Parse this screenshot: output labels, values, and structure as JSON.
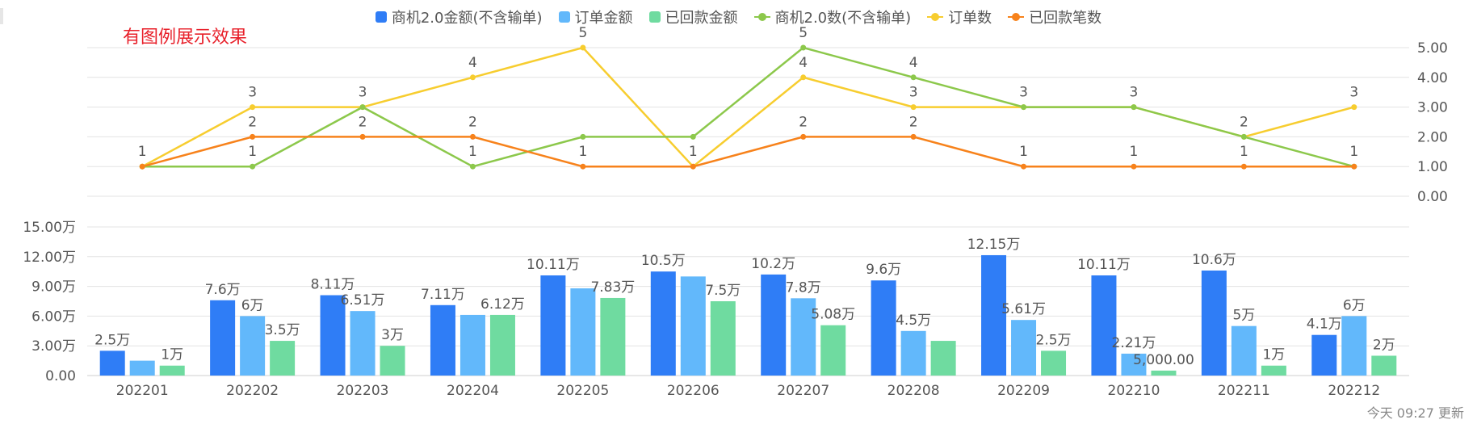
{
  "legend": [
    {
      "label": "商机2.0金额(不含输单)",
      "kind": "bar",
      "color": "#2f7df6"
    },
    {
      "label": "订单金额",
      "kind": "bar",
      "color": "#62b8fb"
    },
    {
      "label": "已回款金额",
      "kind": "bar",
      "color": "#6fdba0"
    },
    {
      "label": "商机2.0数(不含输单)",
      "kind": "line",
      "color": "#8cc84b"
    },
    {
      "label": "订单数",
      "kind": "line",
      "color": "#f7cd2f"
    },
    {
      "label": "已回款笔数",
      "kind": "line",
      "color": "#f7821b"
    }
  ],
  "annotation": "有图例展示效果",
  "footer": "今天 09:27 更新",
  "chart_data": [
    {
      "type": "line",
      "categories": [
        "202201",
        "202202",
        "202203",
        "202204",
        "202205",
        "202206",
        "202207",
        "202208",
        "202209",
        "202210",
        "202211",
        "202212"
      ],
      "yaxis_side": "right",
      "ylim": [
        0,
        5
      ],
      "yticks": [
        "0.00",
        "1.00",
        "2.00",
        "3.00",
        "4.00",
        "5.00"
      ],
      "grid": true,
      "series": [
        {
          "name": "订单数",
          "color": "#f7cd2f",
          "values": [
            1,
            3,
            3,
            4,
            5,
            1,
            4,
            3,
            3,
            3,
            2,
            3
          ],
          "labels": [
            "1",
            "3",
            "3",
            "4",
            "5",
            "",
            "4",
            "3",
            "3",
            "3",
            "",
            "3"
          ]
        },
        {
          "name": "商机2.0数(不含输单)",
          "color": "#8cc84b",
          "values": [
            1,
            1,
            3,
            1,
            2,
            2,
            5,
            4,
            3,
            3,
            2,
            1
          ],
          "labels": [
            "",
            "1",
            "",
            "1",
            "",
            "",
            "5",
            "4",
            "",
            "",
            "2",
            ""
          ]
        },
        {
          "name": "已回款笔数",
          "color": "#f7821b",
          "values": [
            1,
            2,
            2,
            2,
            1,
            1,
            2,
            2,
            1,
            1,
            1,
            1
          ],
          "labels": [
            "",
            "2",
            "2",
            "2",
            "1",
            "1",
            "2",
            "2",
            "1",
            "1",
            "1",
            "1"
          ]
        }
      ]
    },
    {
      "type": "bar",
      "categories": [
        "202201",
        "202202",
        "202203",
        "202204",
        "202205",
        "202206",
        "202207",
        "202208",
        "202209",
        "202210",
        "202211",
        "202212"
      ],
      "ylim": [
        0,
        150000
      ],
      "yticks": [
        "0.00",
        "3.00万",
        "6.00万",
        "9.00万",
        "12.00万",
        "15.00万"
      ],
      "grid": true,
      "series": [
        {
          "name": "商机2.0金额(不含输单)",
          "color": "#2f7df6",
          "values": [
            25000,
            76000,
            81100,
            71100,
            101100,
            105000,
            102000,
            96000,
            121500,
            101100,
            106000,
            41000
          ],
          "labels": [
            "2.5万",
            "7.6万",
            "8.11万",
            "7.11万",
            "10.11万",
            "10.5万",
            "10.2万",
            "9.6万",
            "12.15万",
            "10.11万",
            "10.6万",
            "4.1万"
          ]
        },
        {
          "name": "订单金额",
          "color": "#62b8fb",
          "values": [
            15000,
            60000,
            65100,
            61200,
            88000,
            100000,
            78000,
            45000,
            56100,
            22100,
            50000,
            60000
          ],
          "labels": [
            "",
            "6万",
            "6.51万",
            "",
            "",
            "",
            "7.8万",
            "4.5万",
            "5.61万",
            "2.21万",
            "5万",
            "6万"
          ]
        },
        {
          "name": "已回款金额",
          "color": "#6fdba0",
          "values": [
            10000,
            35000,
            30000,
            61200,
            78300,
            75000,
            50800,
            35000,
            25000,
            5000,
            10000,
            20000
          ],
          "labels": [
            "1万",
            "3.5万",
            "3万",
            "6.12万",
            "7.83万",
            "7.5万",
            "5.08万",
            "",
            "2.5万",
            "5,000.00",
            "1万",
            "2万"
          ]
        }
      ]
    }
  ]
}
